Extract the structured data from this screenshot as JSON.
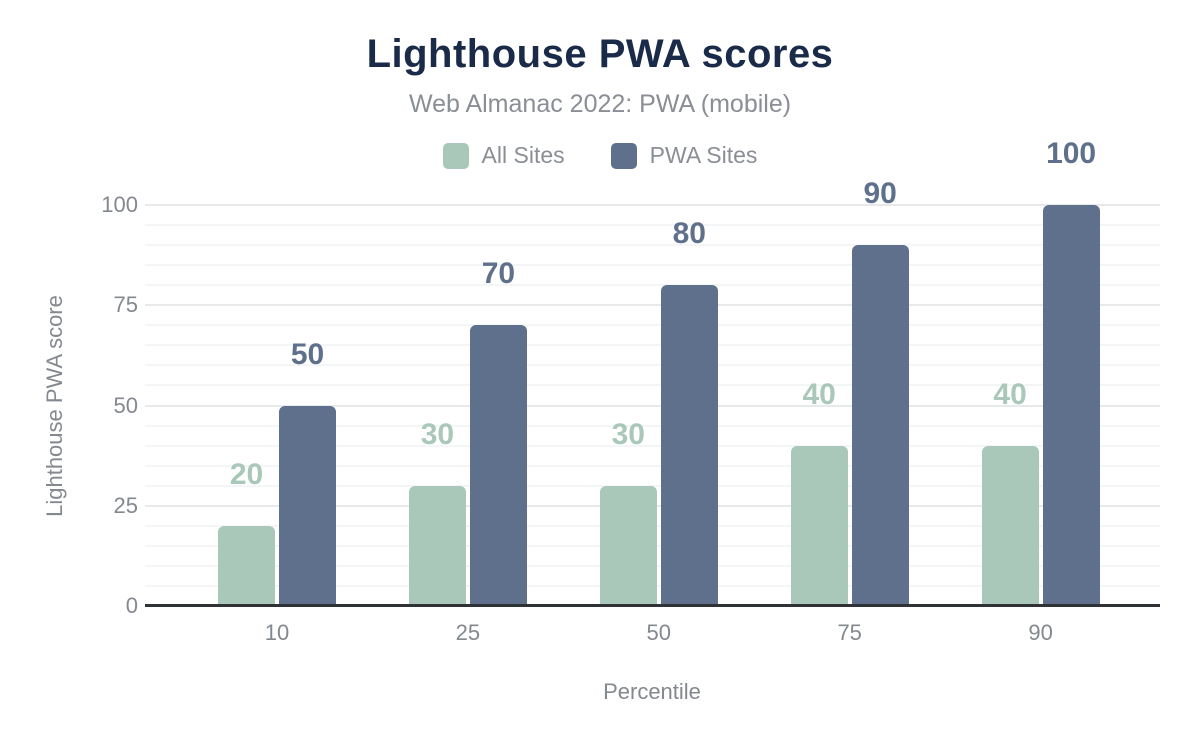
{
  "header": {
    "title": "Lighthouse PWA scores",
    "subtitle": "Web Almanac 2022: PWA (mobile)"
  },
  "legend": {
    "items": [
      {
        "label": "All Sites",
        "color": "#a9c8b9"
      },
      {
        "label": "PWA Sites",
        "color": "#5e708c"
      }
    ]
  },
  "chart_data": {
    "type": "bar",
    "title": "Lighthouse PWA scores",
    "subtitle": "Web Almanac 2022: PWA (mobile)",
    "categories": [
      "10",
      "25",
      "50",
      "75",
      "90"
    ],
    "series": [
      {
        "name": "All Sites",
        "color": "#a9c8b9",
        "values": [
          20,
          30,
          30,
          40,
          40
        ]
      },
      {
        "name": "PWA Sites",
        "color": "#5e708c",
        "values": [
          50,
          70,
          80,
          90,
          100
        ]
      }
    ],
    "xlabel": "Percentile",
    "ylabel": "Lighthouse PWA score",
    "ylim": [
      0,
      100
    ],
    "yticks": [
      "0",
      "25",
      "50",
      "75",
      "100"
    ],
    "minor_grid_step": 5,
    "major_grid_step": 25,
    "grid": true,
    "legend_position": "top",
    "data_labels": true
  },
  "colors": {
    "title": "#1a2b49",
    "subtitle_text": "#8a8e95",
    "axis_text": "#84888f",
    "axis_line": "#2f3338",
    "major_gridline": "#e8e9eb",
    "minor_gridline": "#f4f5f7",
    "background": "#ffffff"
  }
}
